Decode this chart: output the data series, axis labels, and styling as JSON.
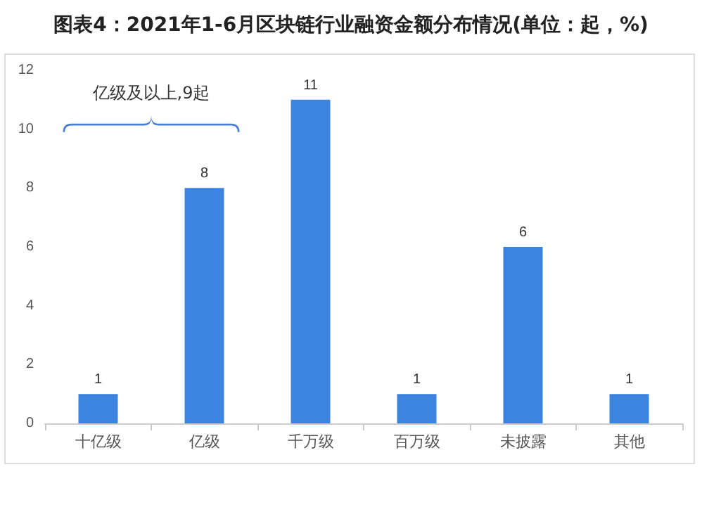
{
  "chart_data": {
    "type": "bar",
    "title": "图表4：2021年1-6月区块链行业融资金额分布情况(单位：起，%)",
    "categories": [
      "十亿级",
      "亿级",
      "千万级",
      "百万级",
      "未披露",
      "其他"
    ],
    "values": [
      1,
      8,
      11,
      1,
      6,
      1
    ],
    "color": "#3d84e0",
    "ylim": [
      0,
      12
    ],
    "yticks": [
      0,
      2,
      4,
      6,
      8,
      10,
      12
    ],
    "grid": false,
    "data_labels": true,
    "annotations": [
      "亿级及以上,9起"
    ]
  }
}
